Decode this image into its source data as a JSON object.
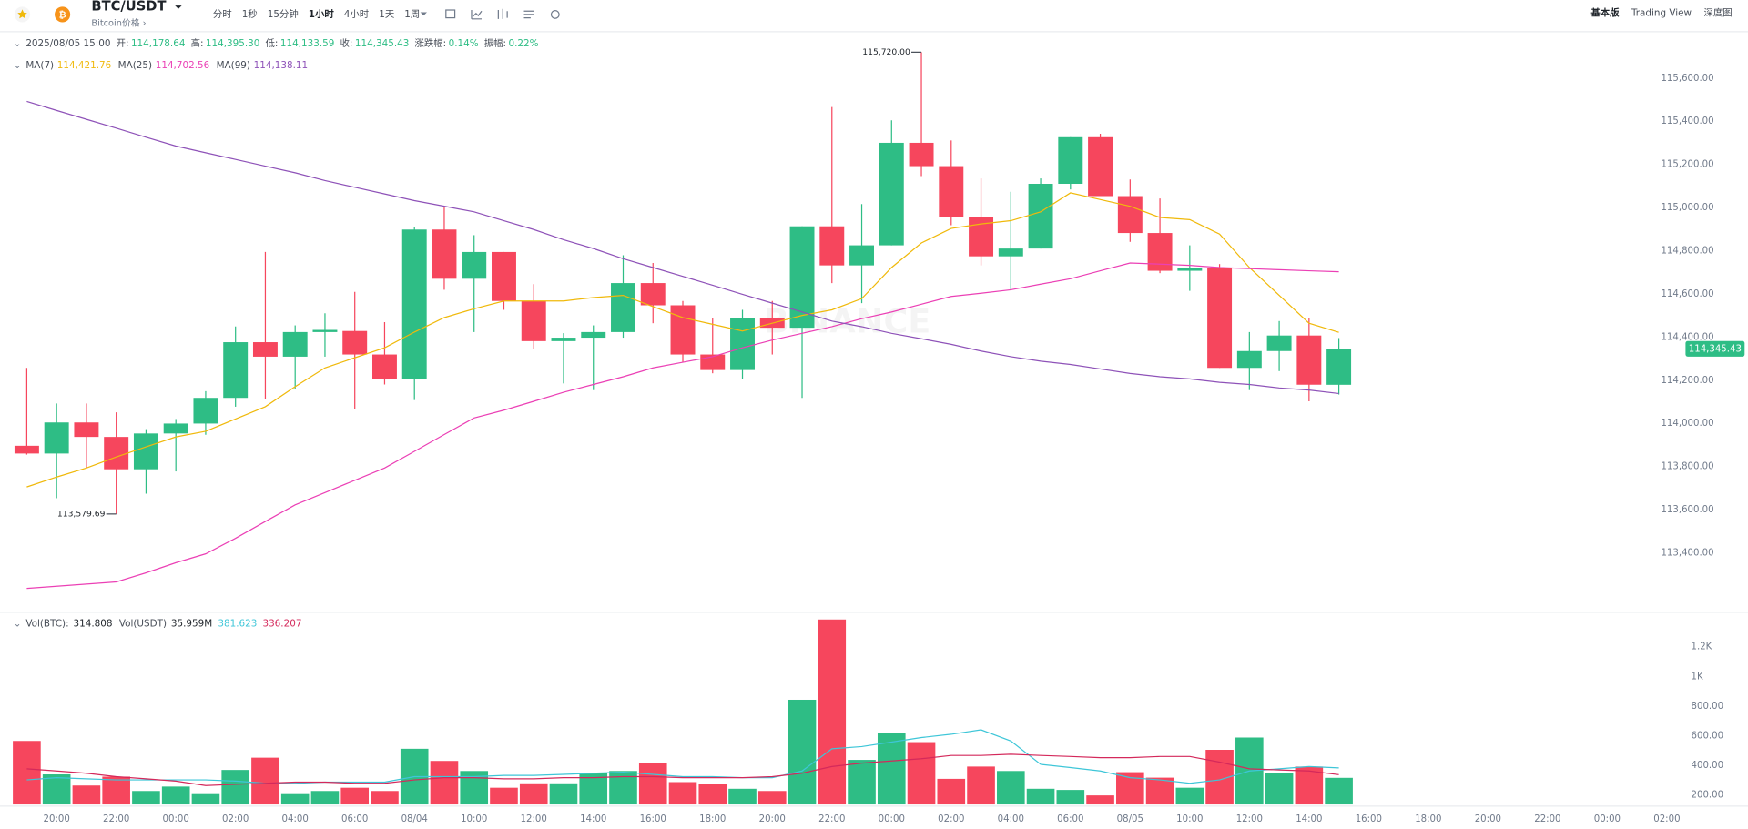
{
  "toolbar": {
    "symbol": "BTC/USDT",
    "subtitle": "Bitcoin价格 ›",
    "intervals": [
      "分时",
      "1秒",
      "15分钟",
      "1小时",
      "4小时",
      "1天",
      "1周"
    ],
    "active_interval": 3,
    "views": [
      "基本版",
      "Trading View",
      "深度图"
    ],
    "active_view": 0
  },
  "info": {
    "date": "2025/08/05 15:00",
    "items": [
      {
        "label": "开:",
        "value": "114,178.64"
      },
      {
        "label": "高:",
        "value": "114,395.30"
      },
      {
        "label": "低:",
        "value": "114,133.59"
      },
      {
        "label": "收:",
        "value": "114,345.43"
      },
      {
        "label": "涨跌幅:",
        "value": "0.14%"
      },
      {
        "label": "振幅:",
        "value": "0.22%"
      }
    ]
  },
  "chart_data": {
    "type": "candlestick",
    "watermark": "BINANCE",
    "up_color": "#2ebd85",
    "down_color": "#f6465d",
    "high_annotation": "115,720.00",
    "low_annotation": "113,579.69",
    "last_price_label": "114,345.43",
    "categories": [
      null,
      "20:00",
      null,
      "22:00",
      null,
      "00:00",
      null,
      "02:00",
      null,
      "04:00",
      null,
      "06:00",
      null,
      "08/04",
      null,
      "10:00",
      null,
      "12:00",
      null,
      "14:00",
      null,
      "16:00",
      null,
      "18:00",
      null,
      "20:00",
      null,
      "22:00",
      null,
      "00:00",
      null,
      "02:00",
      null,
      "04:00",
      null,
      "06:00",
      null,
      "08/05",
      null,
      "10:00",
      null,
      "12:00",
      null,
      "14:00",
      null,
      "16:00",
      null,
      "18:00",
      null,
      "20:00",
      null,
      "22:00",
      null,
      "00:00",
      null,
      "02:00"
    ],
    "open": [
      113896,
      113860,
      114004,
      113937,
      113787,
      113953,
      113999,
      114118,
      114376,
      114309,
      114423,
      114428,
      114319,
      114206,
      114898,
      114670,
      114794,
      114567,
      114381,
      114397,
      114423,
      114650,
      114547,
      114319,
      114247,
      114490,
      114443,
      114913,
      114732,
      114825,
      115300,
      115192,
      114954,
      114774,
      114810,
      115110,
      115326,
      115053,
      114882,
      114707,
      114722,
      114257,
      114335,
      114407,
      114178.64,
      null,
      null,
      null,
      null,
      null,
      null,
      null,
      null,
      null,
      null,
      null
    ],
    "high": [
      114257,
      114092,
      114092,
      114051,
      113973,
      114020,
      114149,
      114449,
      114794,
      114454,
      114510,
      114609,
      114469,
      114908,
      115001,
      114872,
      114794,
      114645,
      114418,
      114454,
      114779,
      114743,
      114567,
      114490,
      114526,
      114567,
      114913,
      115466,
      115016,
      115404,
      115720,
      115311,
      115135,
      115073,
      115135,
      115326,
      115342,
      115130,
      115042,
      114825,
      114738,
      114423,
      114474,
      114490,
      114395.3,
      null,
      null,
      null,
      null,
      null,
      null,
      null,
      null,
      null,
      null,
      null
    ],
    "low": [
      113855,
      113653,
      113793,
      113579.69,
      113674,
      113777,
      113947,
      114077,
      114113,
      114159,
      114309,
      114066,
      114180,
      114108,
      114619,
      114423,
      114526,
      114345,
      114185,
      114154,
      114397,
      114464,
      114283,
      114232,
      114206,
      114319,
      114118,
      114650,
      114557,
      114825,
      115146,
      114918,
      114732,
      114619,
      114810,
      115084,
      115053,
      114841,
      114696,
      114614,
      114257,
      114154,
      114242,
      114102,
      114133.59,
      null,
      null,
      null,
      null,
      null,
      null,
      null,
      null,
      null,
      null,
      null
    ],
    "close": [
      113860,
      114004,
      113937,
      113787,
      113953,
      113999,
      114118,
      114376,
      114309,
      114423,
      114433,
      114319,
      114206,
      114898,
      114670,
      114794,
      114567,
      114381,
      114397,
      114423,
      114650,
      114547,
      114319,
      114247,
      114490,
      114443,
      114913,
      114732,
      114825,
      115300,
      115192,
      114954,
      114774,
      114810,
      115110,
      115326,
      115053,
      114882,
      114707,
      114722,
      114257,
      114335,
      114407,
      114179,
      114345.43,
      null,
      null,
      null,
      null,
      null,
      null,
      null,
      null,
      null,
      null,
      null
    ],
    "ylim": [
      113132,
      115807
    ],
    "yticks": [
      {
        "value": 113400,
        "label": "113,400.00"
      },
      {
        "value": 113600,
        "label": "113,600.00"
      },
      {
        "value": 113800,
        "label": "113,800.00"
      },
      {
        "value": 114000,
        "label": "114,000.00"
      },
      {
        "value": 114200,
        "label": "114,200.00"
      },
      {
        "value": 114400,
        "label": "114,400.00"
      },
      {
        "value": 114600,
        "label": "114,600.00"
      },
      {
        "value": 114800,
        "label": "114,800.00"
      },
      {
        "value": 115000,
        "label": "115,000.00"
      },
      {
        "value": 115200,
        "label": "115,200.00"
      },
      {
        "value": 115400,
        "label": "115,400.00"
      },
      {
        "value": 115600,
        "label": "115,600.00"
      }
    ],
    "grid": false,
    "ma_series": [
      {
        "name": "MA(7)",
        "color": "#f0b90b",
        "last_label": "114,421.76",
        "values": [
          113705,
          113751,
          113793,
          113844,
          113891,
          113937,
          113963,
          114020,
          114077,
          114170,
          114257,
          114304,
          114350,
          114423,
          114490,
          114531,
          114567,
          114567,
          114567,
          114583,
          114593,
          114541,
          114490,
          114459,
          114428,
          114464,
          114500,
          114526,
          114578,
          114722,
          114836,
          114903,
          114924,
          114939,
          114980,
          115068,
          115037,
          115006,
          114954,
          114944,
          114877,
          114722,
          114593,
          114464,
          114421.76,
          null,
          null,
          null,
          null,
          null,
          null,
          null,
          null,
          null,
          null,
          null
        ]
      },
      {
        "name": "MA(25)",
        "color": "#eb40b5",
        "last_label": "114,702.56",
        "values": [
          113235,
          113245,
          113255,
          113265,
          113307,
          113354,
          113395,
          113467,
          113545,
          113622,
          113679,
          113736,
          113793,
          113870,
          113948,
          114025,
          114061,
          114102,
          114144,
          114180,
          114216,
          114257,
          114283,
          114309,
          114350,
          114386,
          114417,
          114448,
          114485,
          114516,
          114552,
          114588,
          114603,
          114619,
          114645,
          114670,
          114707,
          114743,
          114738,
          114732,
          114722,
          114717,
          114712,
          114707,
          114702.56,
          null,
          null,
          null,
          null,
          null,
          null,
          null,
          null,
          null,
          null,
          null
        ]
      },
      {
        "name": "MA(99)",
        "color": "#8e52b8",
        "last_label": "114,138.11",
        "values": [
          115492,
          115450,
          115409,
          115368,
          115326,
          115285,
          115254,
          115223,
          115192,
          115161,
          115125,
          115094,
          115063,
          115032,
          115006,
          114980,
          114939,
          114898,
          114851,
          114810,
          114763,
          114722,
          114681,
          114640,
          114598,
          114557,
          114516,
          114474,
          114448,
          114417,
          114392,
          114366,
          114335,
          114309,
          114288,
          114273,
          114252,
          114231,
          114216,
          114206,
          114190,
          114180,
          114164,
          114154,
          114138.11,
          null,
          null,
          null,
          null,
          null,
          null,
          null,
          null,
          null,
          null,
          null
        ]
      }
    ],
    "volume": {
      "name": "Vol(BTC):",
      "last_label": "314.808",
      "quote_name": "Vol(USDT)",
      "quote_label": "35.959M",
      "values": [
        564,
        338,
        263,
        323,
        226,
        256,
        211,
        368,
        451,
        211,
        226,
        248,
        226,
        511,
        429,
        361,
        248,
        278,
        278,
        346,
        361,
        414,
        286,
        271,
        241,
        226,
        842,
        1384,
        436,
        617,
        556,
        308,
        391,
        361,
        241,
        233,
        196,
        353,
        316,
        248,
        504,
        587,
        346,
        391,
        314.808,
        null,
        null,
        null,
        null,
        null,
        null,
        null,
        null,
        null,
        null,
        null
      ],
      "ylim": [
        135,
        1429
      ],
      "yticks": [
        {
          "value": 200,
          "label": "200.00"
        },
        {
          "value": 400,
          "label": "400.00"
        },
        {
          "value": 600,
          "label": "600.00"
        },
        {
          "value": 800,
          "label": "800.00"
        },
        {
          "value": 1000,
          "label": "1K"
        },
        {
          "value": 1200,
          "label": "1.2K"
        }
      ],
      "ma_series": [
        {
          "color": "#3ec6d8",
          "last_label": "381.623",
          "values": [
            301,
            316,
            308,
            301,
            301,
            301,
            301,
            293,
            278,
            278,
            286,
            286,
            286,
            323,
            323,
            323,
            331,
            331,
            338,
            346,
            353,
            338,
            323,
            323,
            316,
            316,
            361,
            511,
            526,
            556,
            587,
            609,
            639,
            564,
            406,
            384,
            361,
            316,
            301,
            278,
            301,
            361,
            376,
            391,
            381.623,
            null,
            null,
            null,
            null,
            null,
            null,
            null,
            null,
            null,
            null,
            null
          ]
        },
        {
          "color": "#d4295b",
          "last_label": "336.207",
          "values": [
            376,
            361,
            346,
            323,
            308,
            293,
            263,
            271,
            278,
            286,
            286,
            278,
            278,
            301,
            316,
            316,
            308,
            308,
            316,
            316,
            323,
            323,
            316,
            316,
            316,
            323,
            346,
            391,
            414,
            429,
            444,
            466,
            466,
            474,
            466,
            459,
            451,
            451,
            459,
            459,
            421,
            376,
            368,
            361,
            336.207,
            null,
            null,
            null,
            null,
            null,
            null,
            null,
            null,
            null,
            null,
            null
          ]
        }
      ]
    }
  }
}
